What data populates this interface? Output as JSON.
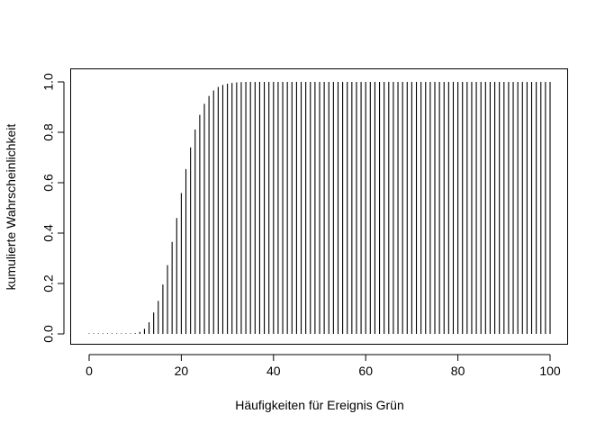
{
  "chart_data": {
    "type": "bar",
    "style": "histogram-spikes",
    "title": "",
    "xlabel": "Häufigkeiten für Ereignis Grün",
    "ylabel": "kumulierte Wahrscheinlichkeit",
    "xlim": [
      0,
      100
    ],
    "ylim": [
      0,
      1
    ],
    "grid": false,
    "legend": "none",
    "x_ticks": [
      0,
      20,
      40,
      60,
      80,
      100
    ],
    "y_ticks": [
      "0.0",
      "0.2",
      "0.4",
      "0.6",
      "0.8",
      "1.0"
    ],
    "x": [
      0,
      1,
      2,
      3,
      4,
      5,
      6,
      7,
      8,
      9,
      10,
      11,
      12,
      13,
      14,
      15,
      16,
      17,
      18,
      19,
      20,
      21,
      22,
      23,
      24,
      25,
      26,
      27,
      28,
      29,
      30,
      31,
      32,
      33,
      34,
      35,
      36,
      37,
      38,
      39,
      40,
      41,
      42,
      43,
      44,
      45,
      46,
      47,
      48,
      49,
      50,
      51,
      52,
      53,
      54,
      55,
      56,
      57,
      58,
      59,
      60,
      61,
      62,
      63,
      64,
      65,
      66,
      67,
      68,
      69,
      70,
      71,
      72,
      73,
      74,
      75,
      76,
      77,
      78,
      79,
      80,
      81,
      82,
      83,
      84,
      85,
      86,
      87,
      88,
      89,
      90,
      91,
      92,
      93,
      94,
      95,
      96,
      97,
      98,
      99,
      100
    ],
    "values": [
      0,
      0,
      0,
      0,
      0,
      0,
      0,
      0,
      0,
      0.001,
      0.003,
      0.008,
      0.02,
      0.046,
      0.085,
      0.131,
      0.196,
      0.273,
      0.365,
      0.46,
      0.559,
      0.654,
      0.74,
      0.811,
      0.869,
      0.913,
      0.944,
      0.966,
      0.98,
      0.988,
      0.993,
      0.996,
      0.998,
      0.999,
      1,
      1,
      1,
      1,
      1,
      1,
      1,
      1,
      1,
      1,
      1,
      1,
      1,
      1,
      1,
      1,
      1,
      1,
      1,
      1,
      1,
      1,
      1,
      1,
      1,
      1,
      1,
      1,
      1,
      1,
      1,
      1,
      1,
      1,
      1,
      1,
      1,
      1,
      1,
      1,
      1,
      1,
      1,
      1,
      1,
      1,
      1,
      1,
      1,
      1,
      1,
      1,
      1,
      1,
      1,
      1,
      1,
      1,
      1,
      1,
      1,
      1,
      1,
      1,
      1,
      1,
      1
    ]
  }
}
